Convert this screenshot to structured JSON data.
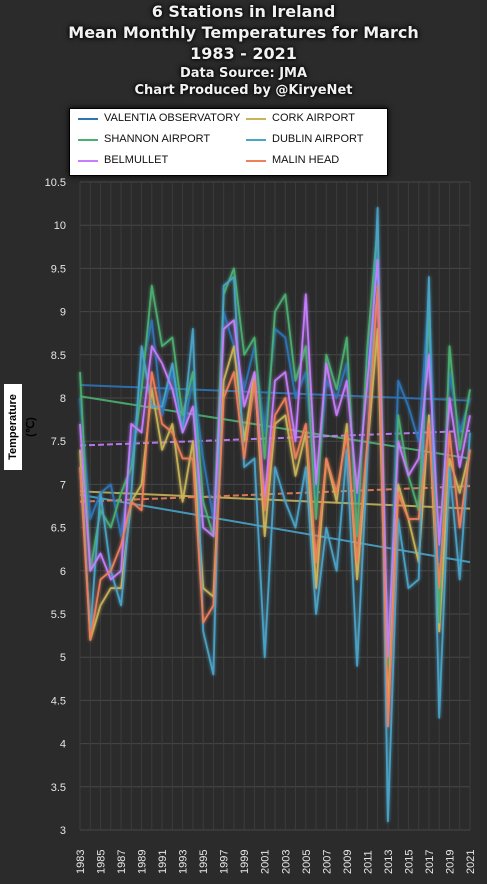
{
  "chart_data": {
    "type": "line",
    "title": "6 Stations in Ireland",
    "subtitle": "Mean Monthly Temperatures for March",
    "years_range": "1983 - 2021",
    "source": "Data Source: JMA",
    "credit": "Chart Produced by @KiryeNet",
    "ylabel": "Temperature (℃)",
    "xlabel": "",
    "ylim": [
      3,
      10.5
    ],
    "yticks": [
      "3",
      "3.5",
      "4",
      "4.5",
      "5",
      "5.5",
      "6",
      "6.5",
      "7",
      "7.5",
      "8",
      "8.5",
      "9",
      "9.5",
      "10",
      "10.5"
    ],
    "x": [
      1983,
      1984,
      1985,
      1986,
      1987,
      1988,
      1989,
      1990,
      1991,
      1992,
      1993,
      1994,
      1995,
      1996,
      1997,
      1998,
      1999,
      2000,
      2001,
      2002,
      2003,
      2004,
      2005,
      2006,
      2007,
      2008,
      2009,
      2010,
      2011,
      2012,
      2013,
      2014,
      2015,
      2016,
      2017,
      2018,
      2019,
      2020,
      2021
    ],
    "xticks": [
      "1983",
      "1985",
      "1987",
      "1989",
      "1991",
      "1993",
      "1995",
      "1997",
      "1999",
      "2001",
      "2003",
      "2005",
      "2007",
      "2009",
      "2011",
      "2013",
      "2015",
      "2017",
      "2019",
      "2021"
    ],
    "grid": true,
    "legend_position": "top",
    "series": [
      {
        "name": "VALENTIA OBSERVATORY",
        "color": "#2e75b6",
        "values": [
          8.0,
          6.6,
          6.9,
          7.0,
          6.4,
          7.3,
          8.3,
          8.9,
          7.8,
          8.3,
          7.6,
          8.2,
          7.3,
          6.6,
          9.0,
          8.6,
          8.1,
          8.6,
          7.6,
          8.8,
          8.7,
          8.0,
          8.3,
          6.8,
          8.2,
          8.0,
          8.4,
          6.8,
          8.4,
          9.4,
          4.9,
          8.2,
          7.9,
          7.5,
          9.2,
          6.1,
          8.3,
          7.6,
          8.0
        ],
        "trend": [
          8.15,
          7.97
        ]
      },
      {
        "name": "CORK AIRPORT",
        "color": "#c9b458",
        "values": [
          7.4,
          5.2,
          5.6,
          5.8,
          5.8,
          6.8,
          7.0,
          8.1,
          7.4,
          7.7,
          6.8,
          7.5,
          5.8,
          5.7,
          8.2,
          8.6,
          7.5,
          8.3,
          6.4,
          7.7,
          7.8,
          7.1,
          7.6,
          5.8,
          7.3,
          6.8,
          7.7,
          5.9,
          7.4,
          8.8,
          4.4,
          7.0,
          6.6,
          6.1,
          7.8,
          5.3,
          7.3,
          6.9,
          7.4
        ],
        "trend": [
          6.92,
          6.72
        ]
      },
      {
        "name": "SHANNON AIRPORT",
        "color": "#4caf72",
        "values": [
          8.3,
          6.0,
          6.7,
          6.5,
          6.9,
          7.2,
          8.1,
          9.3,
          8.6,
          8.7,
          7.8,
          8.3,
          6.8,
          6.4,
          9.2,
          9.5,
          8.5,
          8.7,
          7.3,
          9.0,
          9.2,
          8.2,
          8.6,
          6.6,
          8.5,
          8.1,
          8.7,
          6.4,
          8.6,
          10.0,
          4.9,
          7.8,
          7.1,
          6.7,
          9.0,
          5.4,
          8.6,
          7.4,
          8.1
        ],
        "trend": [
          8.02,
          7.3
        ]
      },
      {
        "name": "DUBLIN AIRPORT",
        "color": "#4aa3c8",
        "values": [
          7.2,
          5.3,
          6.9,
          6.0,
          5.6,
          6.9,
          8.6,
          7.9,
          7.9,
          8.4,
          7.6,
          8.8,
          5.3,
          4.8,
          9.3,
          9.4,
          7.2,
          7.3,
          5.0,
          7.2,
          6.8,
          6.5,
          7.2,
          5.5,
          6.5,
          6.0,
          7.4,
          4.9,
          7.3,
          10.2,
          3.1,
          6.6,
          5.8,
          5.9,
          9.4,
          4.3,
          7.2,
          5.9,
          7.6
        ],
        "trend": [
          6.88,
          6.1
        ]
      },
      {
        "name": "BELMULLET",
        "color": "#c77dff",
        "values": [
          7.7,
          6.0,
          6.2,
          5.9,
          6.0,
          7.7,
          7.6,
          8.6,
          8.4,
          8.1,
          7.6,
          7.9,
          6.5,
          6.4,
          8.8,
          8.9,
          7.9,
          8.3,
          6.8,
          8.2,
          8.3,
          7.5,
          9.2,
          7.0,
          8.4,
          7.8,
          8.2,
          6.9,
          8.2,
          9.6,
          5.0,
          7.5,
          7.1,
          7.3,
          8.5,
          6.3,
          8.0,
          7.2,
          7.8
        ],
        "trend": [
          7.45,
          7.62
        ]
      },
      {
        "name": "MALIN HEAD",
        "color": "#ef7f5a",
        "values": [
          7.2,
          5.2,
          5.9,
          6.0,
          6.3,
          6.8,
          6.7,
          8.3,
          7.7,
          7.6,
          7.3,
          7.3,
          5.4,
          5.6,
          8.0,
          8.3,
          7.3,
          8.2,
          6.7,
          7.8,
          8.0,
          7.3,
          7.7,
          6.1,
          7.3,
          6.9,
          7.6,
          6.1,
          7.5,
          9.3,
          4.2,
          6.9,
          6.6,
          6.6,
          7.7,
          5.8,
          7.6,
          6.5,
          7.4
        ],
        "trend": [
          6.8,
          6.98
        ]
      }
    ]
  }
}
